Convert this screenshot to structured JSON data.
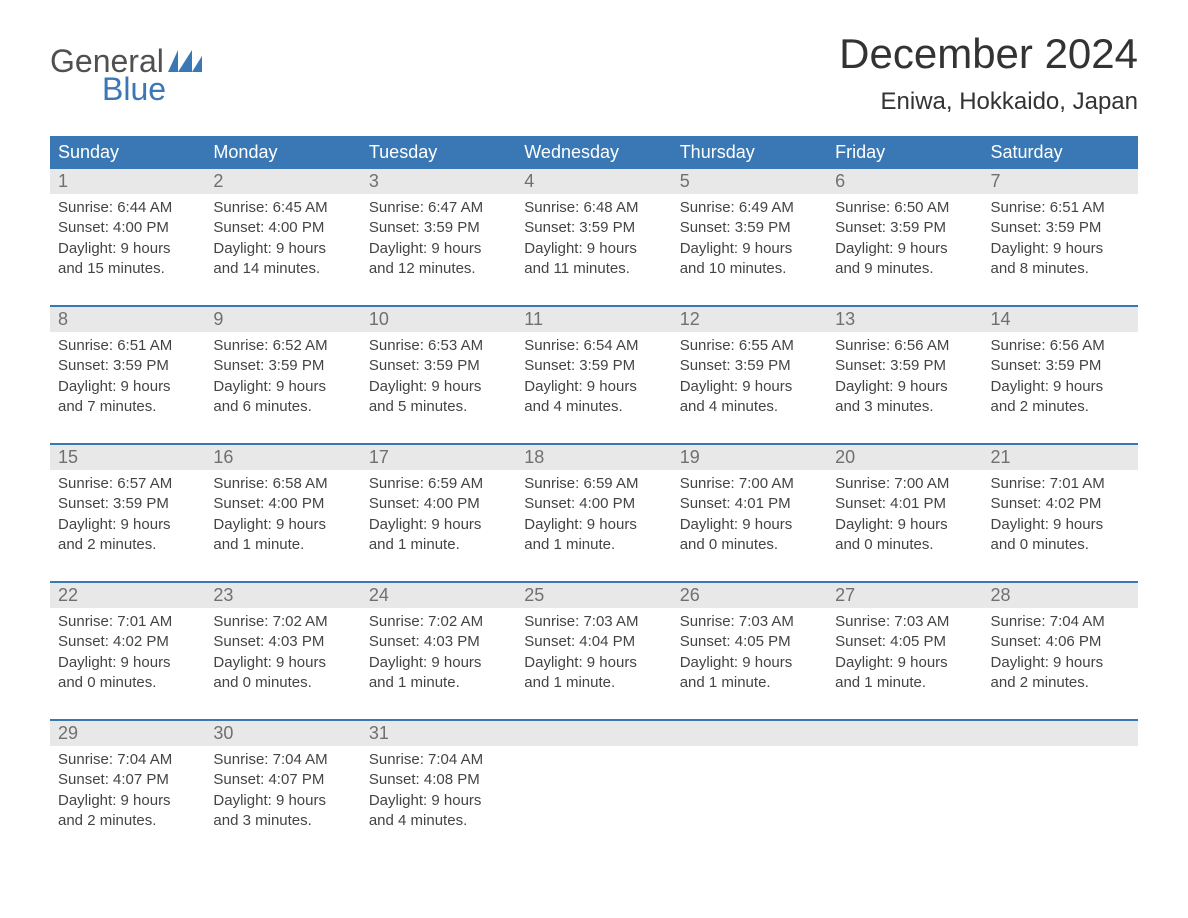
{
  "brand": {
    "word1": "General",
    "word2": "Blue",
    "text_color_top": "#505050",
    "text_color_bottom": "#3a78b5",
    "flag_color": "#3a78b5"
  },
  "title": {
    "month": "December 2024",
    "location": "Eniwa, Hokkaido, Japan",
    "month_fontsize": 42,
    "location_fontsize": 24,
    "color": "#333333"
  },
  "colors": {
    "header_bg": "#3a78b5",
    "header_text": "#ffffff",
    "daynum_bg": "#e8e8e8",
    "daynum_text": "#707070",
    "body_text": "#444444",
    "divider": "#3a78b5",
    "page_bg": "#ffffff"
  },
  "layout": {
    "columns": 7,
    "type": "calendar-table",
    "cell_fontsize": 15,
    "header_fontsize": 18,
    "daynum_fontsize": 18
  },
  "day_headers": [
    "Sunday",
    "Monday",
    "Tuesday",
    "Wednesday",
    "Thursday",
    "Friday",
    "Saturday"
  ],
  "weeks": [
    [
      {
        "num": "1",
        "sunrise": "Sunrise: 6:44 AM",
        "sunset": "Sunset: 4:00 PM",
        "day1": "Daylight: 9 hours",
        "day2": "and 15 minutes."
      },
      {
        "num": "2",
        "sunrise": "Sunrise: 6:45 AM",
        "sunset": "Sunset: 4:00 PM",
        "day1": "Daylight: 9 hours",
        "day2": "and 14 minutes."
      },
      {
        "num": "3",
        "sunrise": "Sunrise: 6:47 AM",
        "sunset": "Sunset: 3:59 PM",
        "day1": "Daylight: 9 hours",
        "day2": "and 12 minutes."
      },
      {
        "num": "4",
        "sunrise": "Sunrise: 6:48 AM",
        "sunset": "Sunset: 3:59 PM",
        "day1": "Daylight: 9 hours",
        "day2": "and 11 minutes."
      },
      {
        "num": "5",
        "sunrise": "Sunrise: 6:49 AM",
        "sunset": "Sunset: 3:59 PM",
        "day1": "Daylight: 9 hours",
        "day2": "and 10 minutes."
      },
      {
        "num": "6",
        "sunrise": "Sunrise: 6:50 AM",
        "sunset": "Sunset: 3:59 PM",
        "day1": "Daylight: 9 hours",
        "day2": "and 9 minutes."
      },
      {
        "num": "7",
        "sunrise": "Sunrise: 6:51 AM",
        "sunset": "Sunset: 3:59 PM",
        "day1": "Daylight: 9 hours",
        "day2": "and 8 minutes."
      }
    ],
    [
      {
        "num": "8",
        "sunrise": "Sunrise: 6:51 AM",
        "sunset": "Sunset: 3:59 PM",
        "day1": "Daylight: 9 hours",
        "day2": "and 7 minutes."
      },
      {
        "num": "9",
        "sunrise": "Sunrise: 6:52 AM",
        "sunset": "Sunset: 3:59 PM",
        "day1": "Daylight: 9 hours",
        "day2": "and 6 minutes."
      },
      {
        "num": "10",
        "sunrise": "Sunrise: 6:53 AM",
        "sunset": "Sunset: 3:59 PM",
        "day1": "Daylight: 9 hours",
        "day2": "and 5 minutes."
      },
      {
        "num": "11",
        "sunrise": "Sunrise: 6:54 AM",
        "sunset": "Sunset: 3:59 PM",
        "day1": "Daylight: 9 hours",
        "day2": "and 4 minutes."
      },
      {
        "num": "12",
        "sunrise": "Sunrise: 6:55 AM",
        "sunset": "Sunset: 3:59 PM",
        "day1": "Daylight: 9 hours",
        "day2": "and 4 minutes."
      },
      {
        "num": "13",
        "sunrise": "Sunrise: 6:56 AM",
        "sunset": "Sunset: 3:59 PM",
        "day1": "Daylight: 9 hours",
        "day2": "and 3 minutes."
      },
      {
        "num": "14",
        "sunrise": "Sunrise: 6:56 AM",
        "sunset": "Sunset: 3:59 PM",
        "day1": "Daylight: 9 hours",
        "day2": "and 2 minutes."
      }
    ],
    [
      {
        "num": "15",
        "sunrise": "Sunrise: 6:57 AM",
        "sunset": "Sunset: 3:59 PM",
        "day1": "Daylight: 9 hours",
        "day2": "and 2 minutes."
      },
      {
        "num": "16",
        "sunrise": "Sunrise: 6:58 AM",
        "sunset": "Sunset: 4:00 PM",
        "day1": "Daylight: 9 hours",
        "day2": "and 1 minute."
      },
      {
        "num": "17",
        "sunrise": "Sunrise: 6:59 AM",
        "sunset": "Sunset: 4:00 PM",
        "day1": "Daylight: 9 hours",
        "day2": "and 1 minute."
      },
      {
        "num": "18",
        "sunrise": "Sunrise: 6:59 AM",
        "sunset": "Sunset: 4:00 PM",
        "day1": "Daylight: 9 hours",
        "day2": "and 1 minute."
      },
      {
        "num": "19",
        "sunrise": "Sunrise: 7:00 AM",
        "sunset": "Sunset: 4:01 PM",
        "day1": "Daylight: 9 hours",
        "day2": "and 0 minutes."
      },
      {
        "num": "20",
        "sunrise": "Sunrise: 7:00 AM",
        "sunset": "Sunset: 4:01 PM",
        "day1": "Daylight: 9 hours",
        "day2": "and 0 minutes."
      },
      {
        "num": "21",
        "sunrise": "Sunrise: 7:01 AM",
        "sunset": "Sunset: 4:02 PM",
        "day1": "Daylight: 9 hours",
        "day2": "and 0 minutes."
      }
    ],
    [
      {
        "num": "22",
        "sunrise": "Sunrise: 7:01 AM",
        "sunset": "Sunset: 4:02 PM",
        "day1": "Daylight: 9 hours",
        "day2": "and 0 minutes."
      },
      {
        "num": "23",
        "sunrise": "Sunrise: 7:02 AM",
        "sunset": "Sunset: 4:03 PM",
        "day1": "Daylight: 9 hours",
        "day2": "and 0 minutes."
      },
      {
        "num": "24",
        "sunrise": "Sunrise: 7:02 AM",
        "sunset": "Sunset: 4:03 PM",
        "day1": "Daylight: 9 hours",
        "day2": "and 1 minute."
      },
      {
        "num": "25",
        "sunrise": "Sunrise: 7:03 AM",
        "sunset": "Sunset: 4:04 PM",
        "day1": "Daylight: 9 hours",
        "day2": "and 1 minute."
      },
      {
        "num": "26",
        "sunrise": "Sunrise: 7:03 AM",
        "sunset": "Sunset: 4:05 PM",
        "day1": "Daylight: 9 hours",
        "day2": "and 1 minute."
      },
      {
        "num": "27",
        "sunrise": "Sunrise: 7:03 AM",
        "sunset": "Sunset: 4:05 PM",
        "day1": "Daylight: 9 hours",
        "day2": "and 1 minute."
      },
      {
        "num": "28",
        "sunrise": "Sunrise: 7:04 AM",
        "sunset": "Sunset: 4:06 PM",
        "day1": "Daylight: 9 hours",
        "day2": "and 2 minutes."
      }
    ],
    [
      {
        "num": "29",
        "sunrise": "Sunrise: 7:04 AM",
        "sunset": "Sunset: 4:07 PM",
        "day1": "Daylight: 9 hours",
        "day2": "and 2 minutes."
      },
      {
        "num": "30",
        "sunrise": "Sunrise: 7:04 AM",
        "sunset": "Sunset: 4:07 PM",
        "day1": "Daylight: 9 hours",
        "day2": "and 3 minutes."
      },
      {
        "num": "31",
        "sunrise": "Sunrise: 7:04 AM",
        "sunset": "Sunset: 4:08 PM",
        "day1": "Daylight: 9 hours",
        "day2": "and 4 minutes."
      },
      {},
      {},
      {},
      {}
    ]
  ]
}
